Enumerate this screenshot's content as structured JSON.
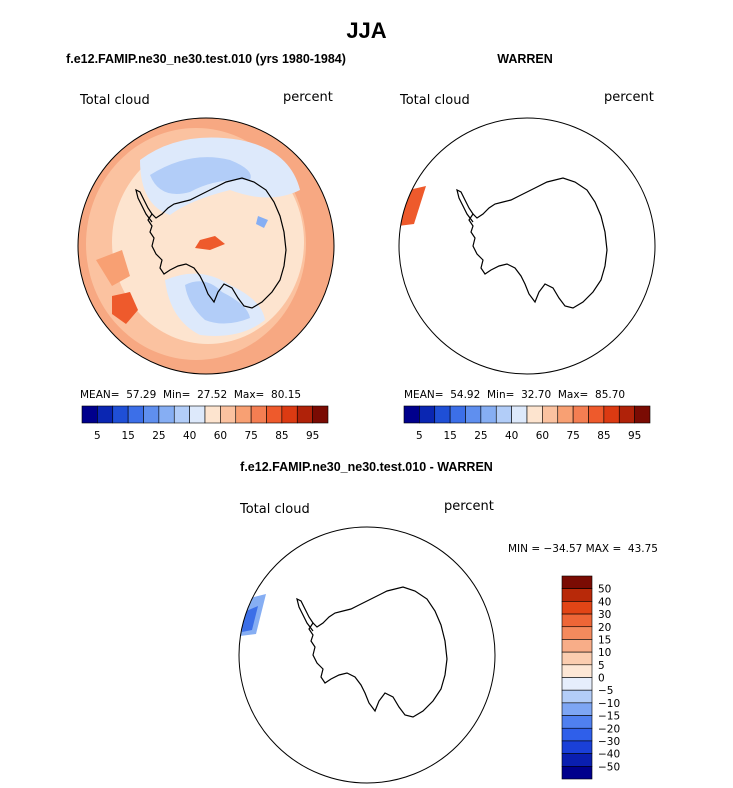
{
  "main_title": "JJA",
  "colors": {
    "scale_pos": [
      "#00008c",
      "#0a26b2",
      "#1f4fd6",
      "#3c6fe8",
      "#5f8fef",
      "#86aef3",
      "#b2cdf8",
      "#dde9fb",
      "#fde4cf",
      "#fbc2a0",
      "#f8a073",
      "#f47e52",
      "#ee5a2c",
      "#db3a12",
      "#b02209",
      "#7a0b03"
    ],
    "scale_diff": [
      "#00008c",
      "#0a1fb0",
      "#1a40d8",
      "#2f5fea",
      "#5080f0",
      "#7ea6f4",
      "#b3cdf8",
      "#e6eefc",
      "#fde7d6",
      "#fbcdb0",
      "#f8ad88",
      "#f48a5d",
      "#ee6637",
      "#e24516",
      "#b82909",
      "#7a0b03"
    ]
  },
  "panel1": {
    "title": "f.e12.FAMIP.ne30_ne30.test.010 (yrs 1980-1984)",
    "left_label": "Total cloud",
    "right_label": "percent",
    "stats": {
      "mean_label": "MEAN=",
      "mean": "57.29",
      "min_label": "Min=",
      "min": "27.52",
      "max_label": "Max=",
      "max": "80.15"
    }
  },
  "panel2": {
    "title": "WARREN",
    "left_label": "Total cloud",
    "right_label": "percent",
    "stats": {
      "mean_label": "MEAN=",
      "mean": "54.92",
      "min_label": "Min=",
      "min": "32.70",
      "max_label": "Max=",
      "max": "85.70"
    }
  },
  "panel3": {
    "title": "f.e12.FAMIP.ne30_ne30.test.010 - WARREN",
    "left_label": "Total cloud",
    "right_label": "percent",
    "minmax": "MIN = −34.57 MAX =  43.75"
  },
  "chart_data": [
    {
      "type": "heatmap",
      "title": "f.e12.FAMIP.ne30_ne30.test.010 (yrs 1980-1984)",
      "variable": "Total cloud",
      "units": "percent",
      "projection": "south polar stereographic",
      "season": "JJA",
      "contour_levels": [
        5,
        10,
        15,
        20,
        25,
        30,
        35,
        40,
        60,
        65,
        70,
        75,
        80,
        85,
        90,
        95
      ],
      "colorbar_tick_labels": [
        "5",
        "15",
        "25",
        "40",
        "60",
        "75",
        "85",
        "95"
      ],
      "mean": 57.29,
      "min": 27.52,
      "max": 80.15
    },
    {
      "type": "heatmap",
      "title": "WARREN",
      "variable": "Total cloud",
      "units": "percent",
      "projection": "south polar stereographic",
      "season": "JJA",
      "contour_levels": [
        5,
        10,
        15,
        20,
        25,
        30,
        35,
        40,
        60,
        65,
        70,
        75,
        80,
        85,
        90,
        95
      ],
      "colorbar_tick_labels": [
        "5",
        "15",
        "25",
        "40",
        "60",
        "75",
        "85",
        "95"
      ],
      "mean": 54.92,
      "min": 32.7,
      "max": 85.7
    },
    {
      "type": "heatmap",
      "title": "f.e12.FAMIP.ne30_ne30.test.010 - WARREN",
      "variable": "Total cloud",
      "units": "percent",
      "projection": "south polar stereographic",
      "season": "JJA",
      "contour_levels": [
        -50,
        -40,
        -30,
        -20,
        -15,
        -10,
        -5,
        0,
        5,
        10,
        15,
        20,
        30,
        40,
        50
      ],
      "colorbar_tick_labels": [
        "50",
        "40",
        "30",
        "20",
        "15",
        "10",
        "5",
        "0",
        "−5",
        "−10",
        "−15",
        "−20",
        "−30",
        "−40",
        "−50"
      ],
      "min": -34.57,
      "max": 43.75
    }
  ]
}
